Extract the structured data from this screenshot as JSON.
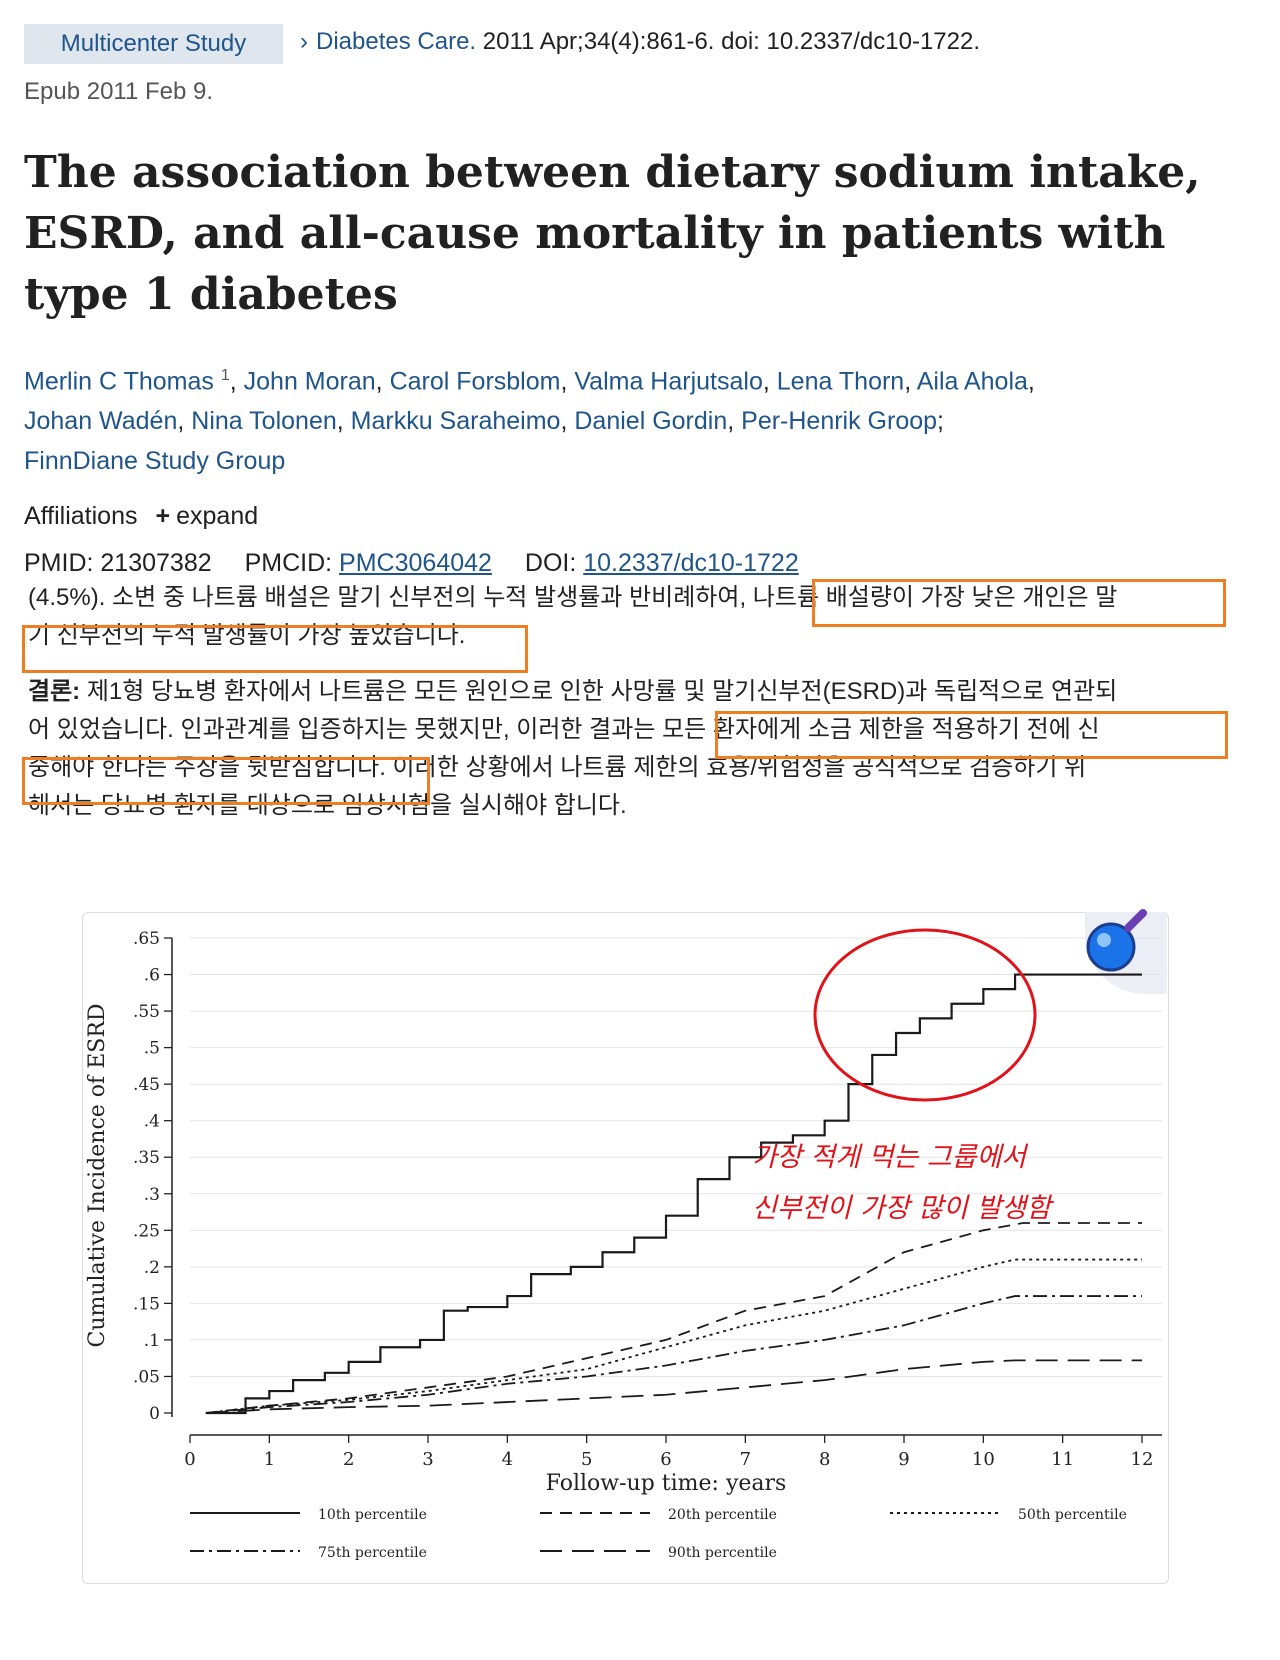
{
  "header": {
    "badge": "Multicenter Study",
    "journal": "Diabetes Care.",
    "citation": "2011 Apr;34(4):861-6. doi: 10.2337/dc10-1722.",
    "epub": "Epub 2011 Feb 9."
  },
  "title": "The association between dietary sodium intake, ESRD, and all-cause mortality in patients with type 1 diabetes",
  "authors": {
    "first": "Merlin C Thomas",
    "first_sup": "1",
    "rest_line1": [
      "John Moran",
      "Carol Forsblom",
      "Valma Harjutsalo",
      "Lena Thorn",
      "Aila Ahola"
    ],
    "line2": [
      "Johan Wadén",
      "Nina Tolonen",
      "Markku Saraheimo",
      "Daniel Gordin",
      "Per-Henrik Groop"
    ],
    "group": "FinnDiane Study Group"
  },
  "affiliations": {
    "label": "Affiliations",
    "expand": "expand"
  },
  "ids": {
    "pmid_label": "PMID:",
    "pmid": "21307382",
    "pmcid_label": "PMCID:",
    "pmcid": "PMC3064042",
    "doi_label": "DOI:",
    "doi": "10.2337/dc10-1722"
  },
  "korean": {
    "p1_line1": "(4.5%). 소변 중 나트륨 배설은 말기 신부전의 누적 발생률과 반비례하여, 나트륨 배설량이 가장 낮은 개인은 말",
    "p1_line2": "기 신부전의 누적 발생률이 가장 높았습니다.",
    "p2_bold": "결론:",
    "p2_line1": " 제1형 당뇨병 환자에서 나트륨은 모든 원인으로 인한 사망률 및 말기신부전(ESRD)과 독립적으로 연관되",
    "p2_line2": "어 있었습니다. 인과관계를 입증하지는 못했지만, 이러한 결과는 모든 환자에게 소금 제한을 적용하기 전에 신",
    "p2_line3": "중해야 한다는 주장을 뒷받침합니다. 이러한 상황에서 나트륨 제한의 효용/위험성을 공식적으로 검증하기 위",
    "p2_line4": "해서는 당뇨병 환자를 대상으로 임상시험을 실시해야 합니다."
  },
  "annotation": {
    "line1": "가장 적게 먹는 그룹에서",
    "line2": "신부전이 가장 많이 발생함",
    "color": "#e0131a"
  },
  "accent": {
    "link": "#20558a",
    "highlight": "#ef7d21"
  },
  "chart_data": {
    "type": "line",
    "title": "",
    "xlabel": "Follow-up time: years",
    "ylabel": "Cumulative Incidence of ESRD",
    "xlim": [
      0,
      12
    ],
    "ylim": [
      0,
      0.65
    ],
    "xticks": [
      "0",
      "1",
      "2",
      "3",
      "4",
      "5",
      "6",
      "7",
      "8",
      "9",
      "10",
      "11",
      "12"
    ],
    "yticks": [
      "0",
      ".05",
      ".1",
      ".15",
      ".2",
      ".25",
      ".3",
      ".35",
      ".4",
      ".45",
      ".5",
      ".55",
      ".6",
      ".65"
    ],
    "legend_position": "bottom",
    "series": [
      {
        "name": "10th percentile",
        "dash": "",
        "x": [
          0.2,
          0.7,
          1.0,
          1.3,
          1.7,
          2.0,
          2.4,
          2.9,
          3.2,
          3.5,
          4.0,
          4.3,
          4.8,
          5.2,
          5.6,
          6.0,
          6.4,
          6.8,
          7.2,
          7.6,
          8.0,
          8.3,
          8.6,
          8.9,
          9.2,
          9.6,
          10.0,
          10.4,
          12.0
        ],
        "y": [
          0,
          0.02,
          0.03,
          0.045,
          0.055,
          0.07,
          0.09,
          0.1,
          0.14,
          0.145,
          0.16,
          0.19,
          0.2,
          0.22,
          0.24,
          0.27,
          0.32,
          0.35,
          0.37,
          0.38,
          0.4,
          0.45,
          0.49,
          0.52,
          0.54,
          0.56,
          0.58,
          0.6,
          0.6
        ]
      },
      {
        "name": "20th percentile",
        "dash": "12,8",
        "x": [
          0.2,
          1,
          2,
          3,
          4,
          5,
          6,
          7,
          8,
          9,
          10,
          10.5,
          12
        ],
        "y": [
          0,
          0.01,
          0.02,
          0.035,
          0.05,
          0.075,
          0.1,
          0.14,
          0.16,
          0.22,
          0.25,
          0.26,
          0.26
        ]
      },
      {
        "name": "50th percentile",
        "dash": "3,4",
        "x": [
          0.2,
          1,
          2,
          3,
          4,
          5,
          6,
          7,
          8,
          9,
          10,
          10.4,
          12
        ],
        "y": [
          0,
          0.01,
          0.018,
          0.03,
          0.045,
          0.06,
          0.09,
          0.12,
          0.14,
          0.17,
          0.2,
          0.21,
          0.21
        ]
      },
      {
        "name": "75th percentile",
        "dash": "14,5,3,5",
        "x": [
          0.2,
          1,
          2,
          3,
          4,
          5,
          6,
          7,
          8,
          9,
          10,
          10.4,
          12
        ],
        "y": [
          0,
          0.008,
          0.015,
          0.025,
          0.04,
          0.05,
          0.065,
          0.085,
          0.1,
          0.12,
          0.15,
          0.16,
          0.16
        ]
      },
      {
        "name": "90th percentile",
        "dash": "22,10",
        "x": [
          0.2,
          1,
          2,
          3,
          4,
          5,
          6,
          7,
          8,
          9,
          10,
          10.4,
          12
        ],
        "y": [
          0,
          0.005,
          0.008,
          0.01,
          0.015,
          0.02,
          0.025,
          0.035,
          0.045,
          0.06,
          0.07,
          0.072,
          0.072
        ]
      }
    ]
  }
}
